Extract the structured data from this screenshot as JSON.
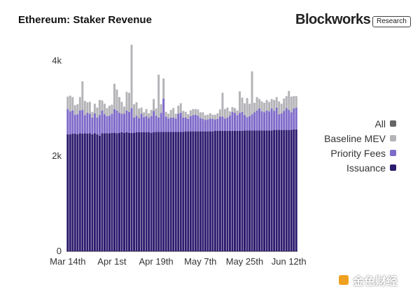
{
  "header": {
    "title": "Ethereum: Staker Revenue",
    "brand": "Blockworks",
    "badge": "Research"
  },
  "watermark": {
    "text": "金色财经"
  },
  "colors": {
    "issuance": "#2d1b6e",
    "priority_fees": "#7e6ac9",
    "baseline_mev": "#b4b4b8",
    "all": "#666666",
    "axis_text": "#333333"
  },
  "legend": {
    "items": [
      {
        "label": "All",
        "color": "#666666"
      },
      {
        "label": "Baseline MEV",
        "color": "#b4b4b8"
      },
      {
        "label": "Priority Fees",
        "color": "#7e6ac9"
      },
      {
        "label": "Issuance",
        "color": "#2d1b6e"
      }
    ]
  },
  "chart_data": {
    "type": "bar",
    "stacked": true,
    "title": "Ethereum: Staker Revenue",
    "xlabel": "",
    "ylabel": "",
    "ylim": [
      0,
      4600
    ],
    "y_ticks": [
      0,
      2000,
      4000
    ],
    "y_tick_labels": [
      "0",
      "2k",
      "4k"
    ],
    "x_tick_labels": [
      "Mar 14th",
      "Apr 1st",
      "Apr 19th",
      "May 7th",
      "May 25th",
      "Jun 12th"
    ],
    "x_tick_indices": [
      0,
      18,
      36,
      54,
      72,
      90
    ],
    "legend_position": "right",
    "grid": false,
    "series": [
      {
        "name": "Issuance",
        "values": [
          2460,
          2460,
          2470,
          2470,
          2460,
          2480,
          2470,
          2480,
          2470,
          2480,
          2460,
          2480,
          2460,
          2430,
          2480,
          2480,
          2480,
          2480,
          2490,
          2490,
          2480,
          2490,
          2500,
          2490,
          2500,
          2490,
          2490,
          2490,
          2500,
          2500,
          2500,
          2500,
          2500,
          2500,
          2490,
          2500,
          2510,
          2510,
          2510,
          2510,
          2510,
          2510,
          2510,
          2510,
          2510,
          2510,
          2510,
          2510,
          2520,
          2520,
          2520,
          2520,
          2520,
          2520,
          2520,
          2520,
          2520,
          2520,
          2520,
          2520,
          2530,
          2530,
          2530,
          2530,
          2530,
          2530,
          2530,
          2530,
          2530,
          2530,
          2530,
          2530,
          2540,
          2540,
          2540,
          2540,
          2540,
          2540,
          2540,
          2540,
          2540,
          2540,
          2540,
          2540,
          2550,
          2550,
          2550,
          2550,
          2550,
          2550,
          2550,
          2550,
          2560,
          2560
        ]
      },
      {
        "name": "Priority Fees",
        "values": [
          530,
          480,
          490,
          400,
          420,
          480,
          500,
          380,
          440,
          410,
          350,
          420,
          350,
          430,
          480,
          400,
          360,
          370,
          400,
          500,
          480,
          420,
          390,
          400,
          460,
          440,
          520,
          320,
          350,
          300,
          390,
          320,
          340,
          300,
          350,
          450,
          340,
          300,
          400,
          700,
          320,
          280,
          300,
          300,
          280,
          380,
          400,
          300,
          290,
          260,
          320,
          340,
          350,
          330,
          280,
          260,
          240,
          250,
          270,
          260,
          240,
          250,
          300,
          300,
          260,
          280,
          320,
          400,
          380,
          330,
          380,
          400,
          320,
          280,
          300,
          340,
          380,
          420,
          460,
          400,
          380,
          420,
          400,
          460,
          400,
          470,
          330,
          350,
          400,
          460,
          420,
          370,
          440,
          460
        ]
      },
      {
        "name": "Baseline MEV",
        "values": [
          260,
          330,
          280,
          200,
          210,
          280,
          600,
          300,
          220,
          250,
          120,
          200,
          210,
          320,
          210,
          220,
          170,
          210,
          190,
          530,
          440,
          330,
          250,
          150,
          390,
          400,
          1330,
          280,
          280,
          200,
          130,
          100,
          150,
          100,
          130,
          250,
          150,
          900,
          180,
          420,
          100,
          100,
          160,
          200,
          100,
          170,
          200,
          140,
          120,
          100,
          120,
          130,
          120,
          130,
          120,
          140,
          100,
          100,
          110,
          90,
          100,
          120,
          150,
          500,
          200,
          210,
          90,
          100,
          100,
          100,
          450,
          300,
          250,
          400,
          260,
          900,
          200,
          280,
          200,
          210,
          200,
          220,
          200,
          200,
          230,
          220,
          270,
          200,
          260,
          250,
          400,
          330,
          260,
          240
        ]
      }
    ]
  }
}
